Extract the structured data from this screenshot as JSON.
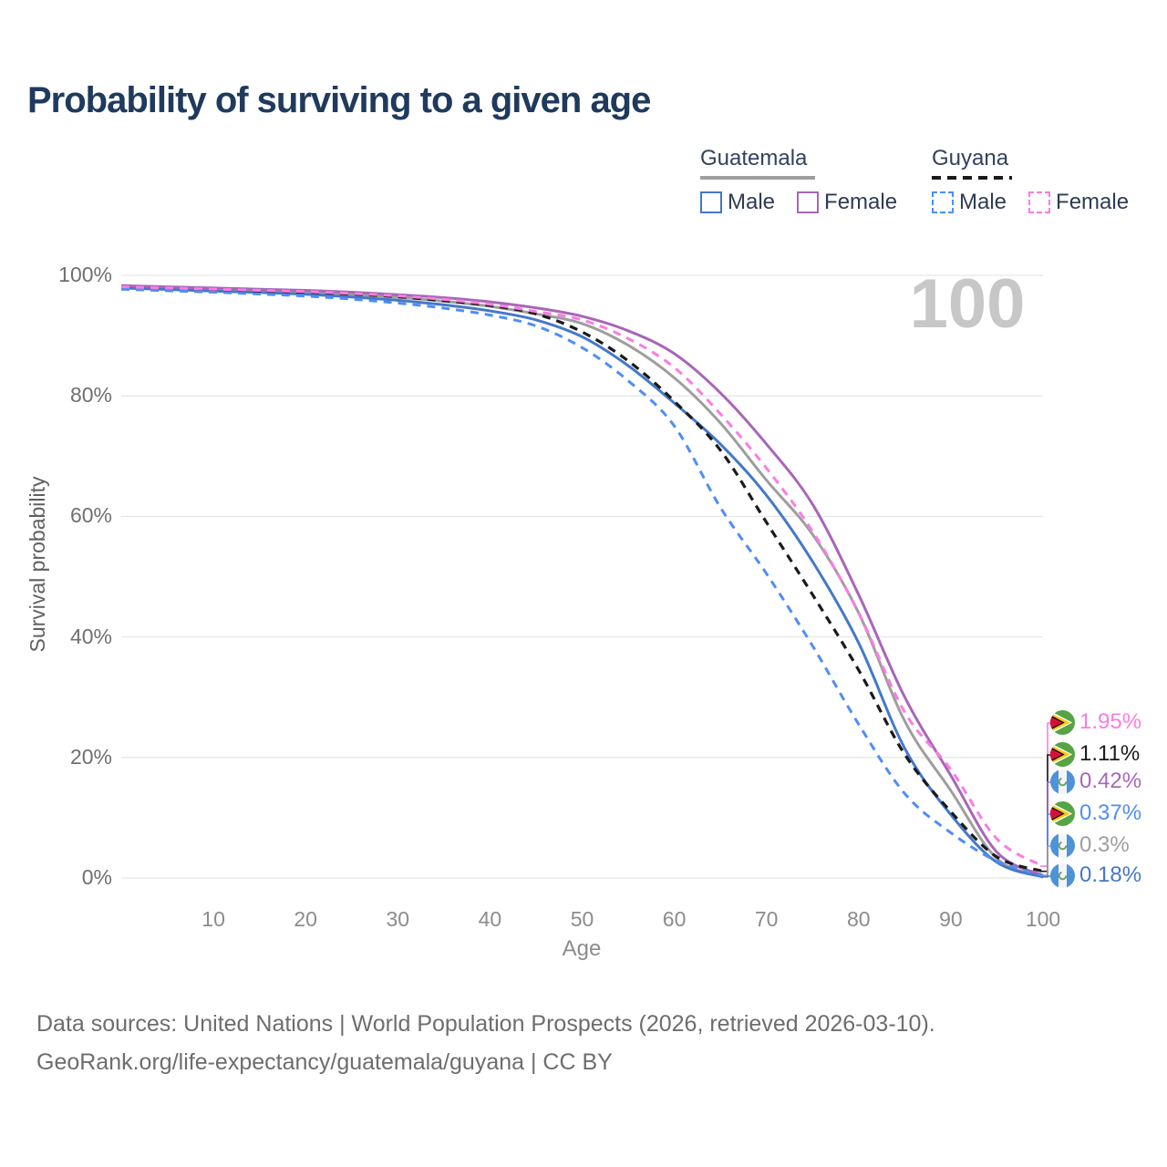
{
  "header": {
    "title": "Probability of surviving to a given age"
  },
  "legend": {
    "groups": [
      {
        "label": "Guatemala",
        "style": "solid",
        "items": [
          {
            "label": "Male",
            "series": "gt-male"
          },
          {
            "label": "Female",
            "series": "gt-female"
          }
        ]
      },
      {
        "label": "Guyana",
        "style": "dashed",
        "items": [
          {
            "label": "Male",
            "series": "gy-male"
          },
          {
            "label": "Female",
            "series": "gy-female"
          }
        ]
      }
    ]
  },
  "chart": {
    "watermark": "100",
    "x_axis_title": "Age",
    "y_axis_title": "Survival probability"
  },
  "chart_data": {
    "type": "line",
    "title": "Probability of surviving to a given age",
    "xlabel": "Age",
    "ylabel": "Survival probability",
    "xlim": [
      0,
      100
    ],
    "ylim": [
      0,
      100
    ],
    "grid": "horizontal",
    "x_ticks": [
      10,
      20,
      30,
      40,
      50,
      60,
      70,
      80,
      90,
      100
    ],
    "y_ticks": [
      0,
      20,
      40,
      60,
      80,
      100
    ],
    "y_tick_suffix": "%",
    "x": [
      0,
      5,
      10,
      15,
      20,
      25,
      30,
      35,
      40,
      45,
      50,
      55,
      60,
      65,
      70,
      75,
      80,
      85,
      90,
      95,
      100
    ],
    "series": [
      {
        "key": "gt-male",
        "name": "Guatemala Male",
        "country": "guatemala",
        "style": "solid",
        "color": "#4478c9",
        "end_label": "0.18%",
        "values": [
          97.9,
          97.65,
          97.4,
          97.15,
          96.85,
          96.4,
          95.85,
          95.1,
          94.1,
          92.6,
          89.8,
          85.0,
          78.8,
          72.0,
          63.5,
          52.5,
          39.0,
          21.5,
          10.5,
          2.6,
          0.18
        ]
      },
      {
        "key": "gt-female",
        "name": "Guatemala Female",
        "country": "guatemala",
        "style": "solid",
        "color": "#a866b8",
        "end_label": "0.42%",
        "values": [
          98.3,
          98.1,
          97.9,
          97.7,
          97.5,
          97.2,
          96.8,
          96.3,
          95.6,
          94.6,
          93.2,
          90.8,
          87.0,
          80.5,
          72.0,
          62.0,
          47.0,
          30.0,
          17.0,
          4.3,
          0.42
        ]
      },
      {
        "key": "gt-all",
        "name": "Guatemala",
        "country": "guatemala",
        "style": "solid",
        "color": "#9e9e9e",
        "end_label": "0.3%",
        "values": [
          98.2,
          98.0,
          97.7,
          97.45,
          97.15,
          96.8,
          96.35,
          95.7,
          94.85,
          93.6,
          92.0,
          88.4,
          83.0,
          75.5,
          66.0,
          57.0,
          44.0,
          26.0,
          14.5,
          3.2,
          0.3
        ]
      },
      {
        "key": "gy-male",
        "name": "Guyana Male",
        "country": "guyana",
        "style": "dashed",
        "color": "#4f8df7",
        "end_label": "0.37%",
        "values": [
          97.7,
          97.45,
          97.2,
          96.9,
          96.55,
          96.05,
          95.4,
          94.55,
          93.4,
          91.6,
          88.0,
          82.5,
          75.0,
          61.5,
          50.5,
          38.5,
          25.5,
          14.0,
          7.5,
          2.8,
          0.37
        ]
      },
      {
        "key": "gy-female",
        "name": "Guyana Female",
        "country": "guyana",
        "style": "dashed",
        "color": "#fb7ce1",
        "end_label": "1.95%",
        "values": [
          98.1,
          97.9,
          97.7,
          97.5,
          97.3,
          97.0,
          96.6,
          96.0,
          95.2,
          94.0,
          92.6,
          89.5,
          84.7,
          77.0,
          68.0,
          57.5,
          44.0,
          27.5,
          18.0,
          6.5,
          1.95
        ]
      },
      {
        "key": "gy-all",
        "name": "Guyana",
        "country": "guyana",
        "style": "dashed",
        "color": "#1a1a1a",
        "end_label": "1.11%",
        "values": [
          98.0,
          97.8,
          97.6,
          97.4,
          97.2,
          96.9,
          96.45,
          95.8,
          95.0,
          93.6,
          90.6,
          85.8,
          79.1,
          71.0,
          59.0,
          47.0,
          34.5,
          20.5,
          11.0,
          3.5,
          1.11
        ]
      }
    ]
  },
  "footer": {
    "line1": "Data sources: United Nations | World Population Prospects (2026, retrieved 2026-03-10).",
    "line2": "GeoRank.org/life-expectancy/guatemala/guyana | CC BY"
  }
}
